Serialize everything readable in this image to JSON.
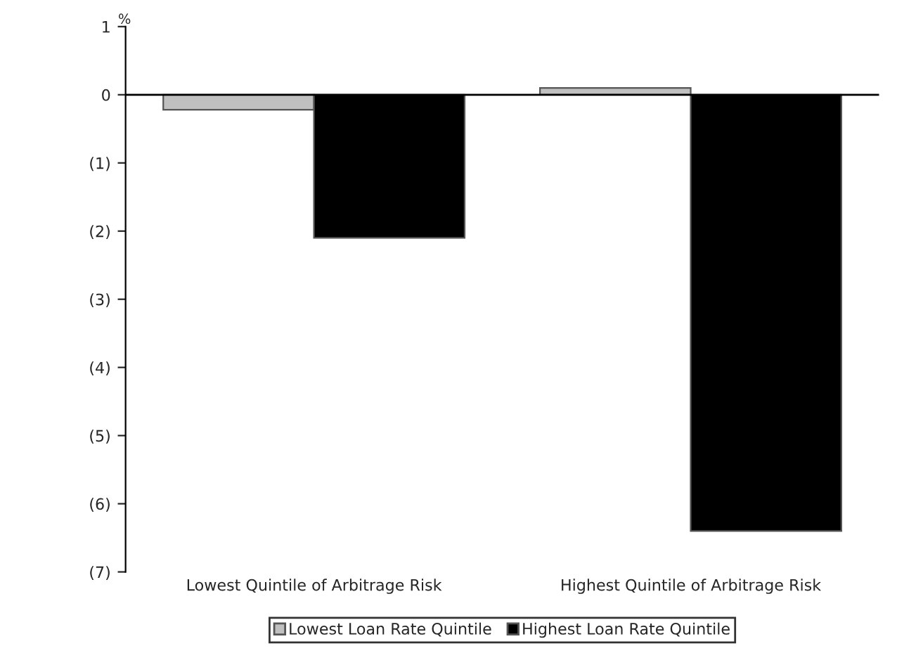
{
  "chart_data": {
    "type": "bar",
    "ylabel": "%",
    "categories": [
      "Lowest Quintile of Arbitrage Risk",
      "Highest Quintile of Arbitrage Risk"
    ],
    "series": [
      {
        "name": "Lowest Loan Rate Quintile",
        "color": "#c0c0c0",
        "values": [
          -0.22,
          0.1
        ]
      },
      {
        "name": "Highest Loan Rate Quintile",
        "color": "#000000",
        "values": [
          -2.1,
          -6.4
        ]
      }
    ],
    "ylim": [
      -7,
      1
    ],
    "yticks": [
      1,
      0,
      {
        "value": -1,
        "label": "(1)"
      },
      {
        "value": -2,
        "label": "(2)"
      },
      {
        "value": -3,
        "label": "(3)"
      },
      {
        "value": -4,
        "label": "(4)"
      },
      {
        "value": -5,
        "label": "(5)"
      },
      {
        "value": -6,
        "label": "(6)"
      },
      {
        "value": -7,
        "label": "(7)"
      }
    ],
    "ref_lines": [
      {
        "axis": "y",
        "value": 0,
        "color": "#000000"
      }
    ],
    "legend": "bottom",
    "grid": false
  }
}
